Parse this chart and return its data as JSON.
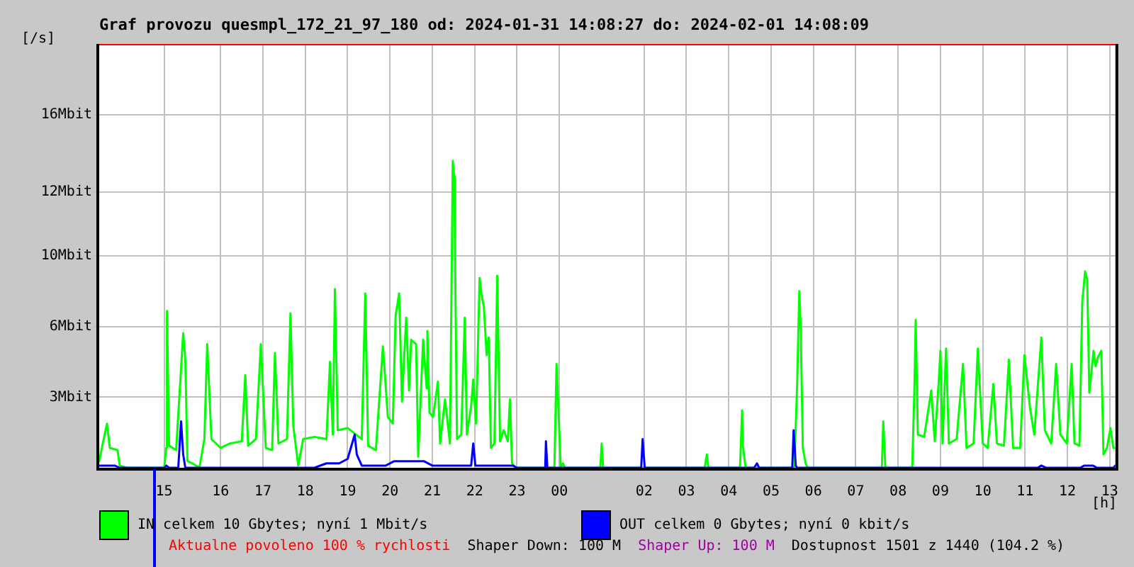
{
  "chart_data": {
    "type": "line",
    "title": "Graf provozu quesmpl_172_21_97_180 od: 2024-01-31 14:08:27 do: 2024-02-01 14:08:09",
    "xlabel": "[h]",
    "ylabel": "[/s]",
    "series": [
      {
        "name": "IN celkem 10 Gbytes; nyní 1 Mbit/s",
        "color": "#00ff00",
        "x": [
          "2024-01-31T13:08",
          "2024-01-31T13:13",
          "2024-01-31T13:19",
          "2024-01-31T13:23",
          "2024-01-31T13:34",
          "2024-01-31T13:37",
          "2024-01-31T13:47",
          "2024-01-31T14:40",
          "2024-01-31T14:43",
          "2024-01-31T14:44",
          "2024-01-31T14:47",
          "2024-01-31T14:57",
          "2024-01-31T15:07",
          "2024-01-31T15:10",
          "2024-01-31T15:13",
          "2024-01-31T15:20",
          "2024-01-31T15:30",
          "2024-01-31T15:37",
          "2024-01-31T15:41",
          "2024-01-31T15:47",
          "2024-01-31T16:00",
          "2024-01-31T16:13",
          "2024-01-31T16:30",
          "2024-01-31T16:35",
          "2024-01-31T16:39",
          "2024-01-31T16:50",
          "2024-01-31T16:57",
          "2024-01-31T17:04",
          "2024-01-31T17:13",
          "2024-01-31T17:17",
          "2024-01-31T17:22",
          "2024-01-31T17:34",
          "2024-01-31T17:39",
          "2024-01-31T17:43",
          "2024-01-31T17:50",
          "2024-01-31T17:57",
          "2024-01-31T18:13",
          "2024-01-31T18:30",
          "2024-01-31T18:35",
          "2024-01-31T18:39",
          "2024-01-31T18:42",
          "2024-01-31T18:46",
          "2024-01-31T19:00",
          "2024-01-31T19:20",
          "2024-01-31T19:25",
          "2024-01-31T19:29",
          "2024-01-31T19:40",
          "2024-01-31T19:50",
          "2024-01-31T19:57",
          "2024-01-31T20:04",
          "2024-01-31T20:08",
          "2024-01-31T20:13",
          "2024-01-31T20:17",
          "2024-01-31T20:20",
          "2024-01-31T20:23",
          "2024-01-31T20:27",
          "2024-01-31T20:30",
          "2024-01-31T20:37",
          "2024-01-31T20:40",
          "2024-01-31T20:47",
          "2024-01-31T20:52",
          "2024-01-31T20:53",
          "2024-01-31T20:56",
          "2024-01-31T21:01",
          "2024-01-31T21:08",
          "2024-01-31T21:11",
          "2024-01-31T21:18",
          "2024-01-31T21:25",
          "2024-01-31T21:29",
          "2024-01-31T21:31",
          "2024-01-31T21:32",
          "2024-01-31T21:35",
          "2024-01-31T21:41",
          "2024-01-31T21:46",
          "2024-01-31T21:49",
          "2024-01-31T21:55",
          "2024-01-31T21:58",
          "2024-01-31T22:02",
          "2024-01-31T22:07",
          "2024-01-31T22:10",
          "2024-01-31T22:13",
          "2024-01-31T22:17",
          "2024-01-31T22:20",
          "2024-01-31T22:23",
          "2024-01-31T22:28",
          "2024-01-31T22:32",
          "2024-01-31T22:36",
          "2024-01-31T22:41",
          "2024-01-31T22:47",
          "2024-01-31T22:50",
          "2024-01-31T22:53",
          "2024-01-31T22:58",
          "2024-01-31T23:53",
          "2024-01-31T23:56",
          "2024-01-31T23:59",
          "2024-02-01T00:02",
          "2024-02-01T00:05",
          "2024-02-01T00:08",
          "2024-02-01T00:58",
          "2024-02-01T01:00",
          "2024-02-01T01:02",
          "2024-02-01T03:26",
          "2024-02-01T03:29",
          "2024-02-01T03:31",
          "2024-02-01T04:16",
          "2024-02-01T04:19",
          "2024-02-01T04:20",
          "2024-02-01T04:24",
          "2024-02-01T05:33",
          "2024-02-01T05:37",
          "2024-02-01T05:40",
          "2024-02-01T05:42",
          "2024-02-01T05:45",
          "2024-02-01T05:49",
          "2024-02-01T05:52",
          "2024-02-01T07:37",
          "2024-02-01T07:39",
          "2024-02-01T07:42",
          "2024-02-01T08:20",
          "2024-02-01T08:23",
          "2024-02-01T08:25",
          "2024-02-01T08:28",
          "2024-02-01T08:37",
          "2024-02-01T08:47",
          "2024-02-01T08:52",
          "2024-02-01T08:58",
          "2024-02-01T09:00",
          "2024-02-01T09:03",
          "2024-02-01T09:08",
          "2024-02-01T09:12",
          "2024-02-01T09:23",
          "2024-02-01T09:32",
          "2024-02-01T09:37",
          "2024-02-01T09:47",
          "2024-02-01T09:53",
          "2024-02-01T10:00",
          "2024-02-01T10:07",
          "2024-02-01T10:15",
          "2024-02-01T10:20",
          "2024-02-01T10:30",
          "2024-02-01T10:37",
          "2024-02-01T10:43",
          "2024-02-01T10:53",
          "2024-02-01T10:59",
          "2024-02-01T11:07",
          "2024-02-01T11:13",
          "2024-02-01T11:23",
          "2024-02-01T11:28",
          "2024-02-01T11:37",
          "2024-02-01T11:44",
          "2024-02-01T11:50",
          "2024-02-01T11:59",
          "2024-02-01T12:06",
          "2024-02-01T12:10",
          "2024-02-01T12:17",
          "2024-02-01T12:21",
          "2024-02-01T12:25",
          "2024-02-01T12:28",
          "2024-02-01T12:31",
          "2024-02-01T12:37",
          "2024-02-01T12:40",
          "2024-02-01T12:43",
          "2024-02-01T12:48",
          "2024-02-01T12:51",
          "2024-02-01T12:56",
          "2024-02-01T13:01",
          "2024-02-01T13:05",
          "2024-02-01T13:08"
        ],
        "values": [
          0.3,
          1.1,
          2.0,
          0.9,
          0.8,
          0.1,
          0.0,
          0.0,
          0.9,
          7.1,
          1.0,
          0.8,
          6.1,
          4.9,
          0.3,
          0.2,
          0.0,
          1.3,
          5.6,
          1.3,
          0.9,
          1.1,
          1.2,
          4.2,
          1.0,
          1.3,
          5.6,
          0.9,
          0.8,
          5.2,
          1.1,
          1.3,
          7.0,
          1.9,
          0.1,
          1.3,
          1.4,
          1.3,
          4.8,
          1.5,
          8.1,
          1.7,
          1.8,
          1.3,
          7.9,
          1.0,
          0.8,
          5.5,
          2.3,
          2.0,
          6.9,
          7.9,
          3.0,
          4.9,
          6.8,
          3.5,
          5.8,
          5.6,
          0.5,
          5.8,
          3.6,
          6.2,
          2.5,
          2.3,
          3.9,
          1.1,
          3.1,
          1.1,
          13.9,
          13.2,
          10.3,
          1.3,
          1.5,
          6.8,
          1.5,
          2.8,
          4.0,
          2.0,
          8.6,
          7.8,
          7.3,
          5.1,
          5.9,
          0.9,
          1.1,
          8.7,
          1.2,
          1.7,
          1.2,
          3.1,
          0.2,
          0.0,
          0.0,
          4.7,
          2.4,
          0.0,
          0.2,
          0.0,
          0.0,
          1.1,
          0.0,
          0.0,
          0.6,
          0.0,
          0.0,
          2.6,
          1.0,
          0.0,
          0.0,
          3.8,
          8.0,
          6.4,
          0.9,
          0.2,
          0.0,
          0.0,
          2.1,
          0.0,
          0.0,
          3.4,
          6.7,
          1.5,
          1.4,
          3.5,
          1.2,
          4.1,
          5.3,
          1.1,
          5.4,
          1.1,
          1.3,
          4.7,
          0.9,
          1.1,
          5.4,
          1.1,
          0.9,
          3.8,
          1.1,
          1.0,
          4.9,
          0.9,
          0.9,
          5.1,
          2.7,
          1.5,
          5.9,
          1.7,
          1.1,
          4.7,
          1.5,
          1.1,
          4.7,
          1.1,
          1.0,
          7.5,
          8.9,
          8.5,
          3.4,
          5.3,
          4.6,
          5.0,
          5.3,
          0.6,
          0.9,
          1.8,
          0.9,
          0.9
        ]
      },
      {
        "name": "OUT celkem 0 Gbytes; nyní 0 kbit/s",
        "color": "#0000ff",
        "x": [
          "2024-01-31T13:08",
          "2024-01-31T13:30",
          "2024-01-31T13:37",
          "2024-01-31T14:41",
          "2024-01-31T14:43",
          "2024-01-31T14:47",
          "2024-01-31T15:00",
          "2024-01-31T15:04",
          "2024-01-31T15:07",
          "2024-01-31T15:10",
          "2024-01-31T18:13",
          "2024-01-31T18:30",
          "2024-01-31T18:48",
          "2024-01-31T19:00",
          "2024-01-31T19:10",
          "2024-01-31T19:13",
          "2024-01-31T19:20",
          "2024-01-31T19:54",
          "2024-01-31T20:06",
          "2024-01-31T20:48",
          "2024-01-31T21:00",
          "2024-01-31T21:55",
          "2024-01-31T21:58",
          "2024-01-31T22:01",
          "2024-01-31T22:54",
          "2024-01-31T23:00",
          "2024-01-31T23:40",
          "2024-01-31T23:41",
          "2024-01-31T23:43",
          "2024-02-01T01:56",
          "2024-02-01T01:58",
          "2024-02-01T02:01",
          "2024-02-01T04:36",
          "2024-02-01T04:40",
          "2024-02-01T04:43",
          "2024-02-01T05:30",
          "2024-02-01T05:32",
          "2024-02-01T05:35",
          "2024-02-01T05:37",
          "2024-02-01T11:18",
          "2024-02-01T11:23",
          "2024-02-01T11:30",
          "2024-02-01T12:18",
          "2024-02-01T12:24",
          "2024-02-01T12:36",
          "2024-02-01T12:42",
          "2024-02-01T13:05",
          "2024-02-01T13:08"
        ],
        "values": [
          0.1,
          0.1,
          0,
          0,
          0.1,
          0,
          0,
          2.1,
          0.6,
          0,
          0,
          0.2,
          0.2,
          0.4,
          1.5,
          0.6,
          0.1,
          0.1,
          0.3,
          0.3,
          0.1,
          0.1,
          1.1,
          0.1,
          0.1,
          0,
          0,
          1.2,
          0,
          0,
          1.3,
          0,
          0,
          0.2,
          0,
          0,
          1.7,
          0.1,
          0,
          0,
          0.1,
          0,
          0,
          0.1,
          0.1,
          0,
          0,
          0.1
        ]
      }
    ],
    "xlim": [
      "2024-01-31T13:08",
      "2024-02-01T13:08"
    ],
    "xticks": [
      {
        "value": "2024-01-31T14:40",
        "label": "15"
      },
      {
        "value": "2024-01-31T16:00",
        "label": "16"
      },
      {
        "value": "2024-01-31T17:00",
        "label": "17"
      },
      {
        "value": "2024-01-31T18:00",
        "label": "18"
      },
      {
        "value": "2024-01-31T19:00",
        "label": "19"
      },
      {
        "value": "2024-01-31T20:00",
        "label": "20"
      },
      {
        "value": "2024-01-31T21:00",
        "label": "21"
      },
      {
        "value": "2024-01-31T22:00",
        "label": "22"
      },
      {
        "value": "2024-01-31T23:00",
        "label": "23"
      },
      {
        "value": "2024-02-01T00:00",
        "label": "00"
      },
      {
        "value": "2024-02-01T02:00",
        "label": "02"
      },
      {
        "value": "2024-02-01T03:00",
        "label": "03"
      },
      {
        "value": "2024-02-01T04:00",
        "label": "04"
      },
      {
        "value": "2024-02-01T05:00",
        "label": "05"
      },
      {
        "value": "2024-02-01T06:00",
        "label": "06"
      },
      {
        "value": "2024-02-01T07:00",
        "label": "07"
      },
      {
        "value": "2024-02-01T08:00",
        "label": "08"
      },
      {
        "value": "2024-02-01T09:00",
        "label": "09"
      },
      {
        "value": "2024-02-01T10:00",
        "label": "10"
      },
      {
        "value": "2024-02-01T11:00",
        "label": "11"
      },
      {
        "value": "2024-02-01T12:00",
        "label": "12"
      },
      {
        "value": "2024-02-01T13:00",
        "label": "13"
      }
    ],
    "ylim": [
      0,
      19.2
    ],
    "yticks": [
      {
        "value": 3.2,
        "label": "3Mbit"
      },
      {
        "value": 6.4,
        "label": "6Mbit"
      },
      {
        "value": 9.6,
        "label": "10Mbit"
      },
      {
        "value": 12.5,
        "label": "12Mbit"
      },
      {
        "value": 16,
        "label": "16Mbit"
      }
    ],
    "grid": true,
    "legend": "bottom",
    "annotations": [
      "Aktualne povoleno 100 % rychlosti",
      "Shaper Down: 100 M",
      "Shaper Up: 100 M",
      "Dostupnost 1501 z 1440 (104.2 %)"
    ]
  }
}
